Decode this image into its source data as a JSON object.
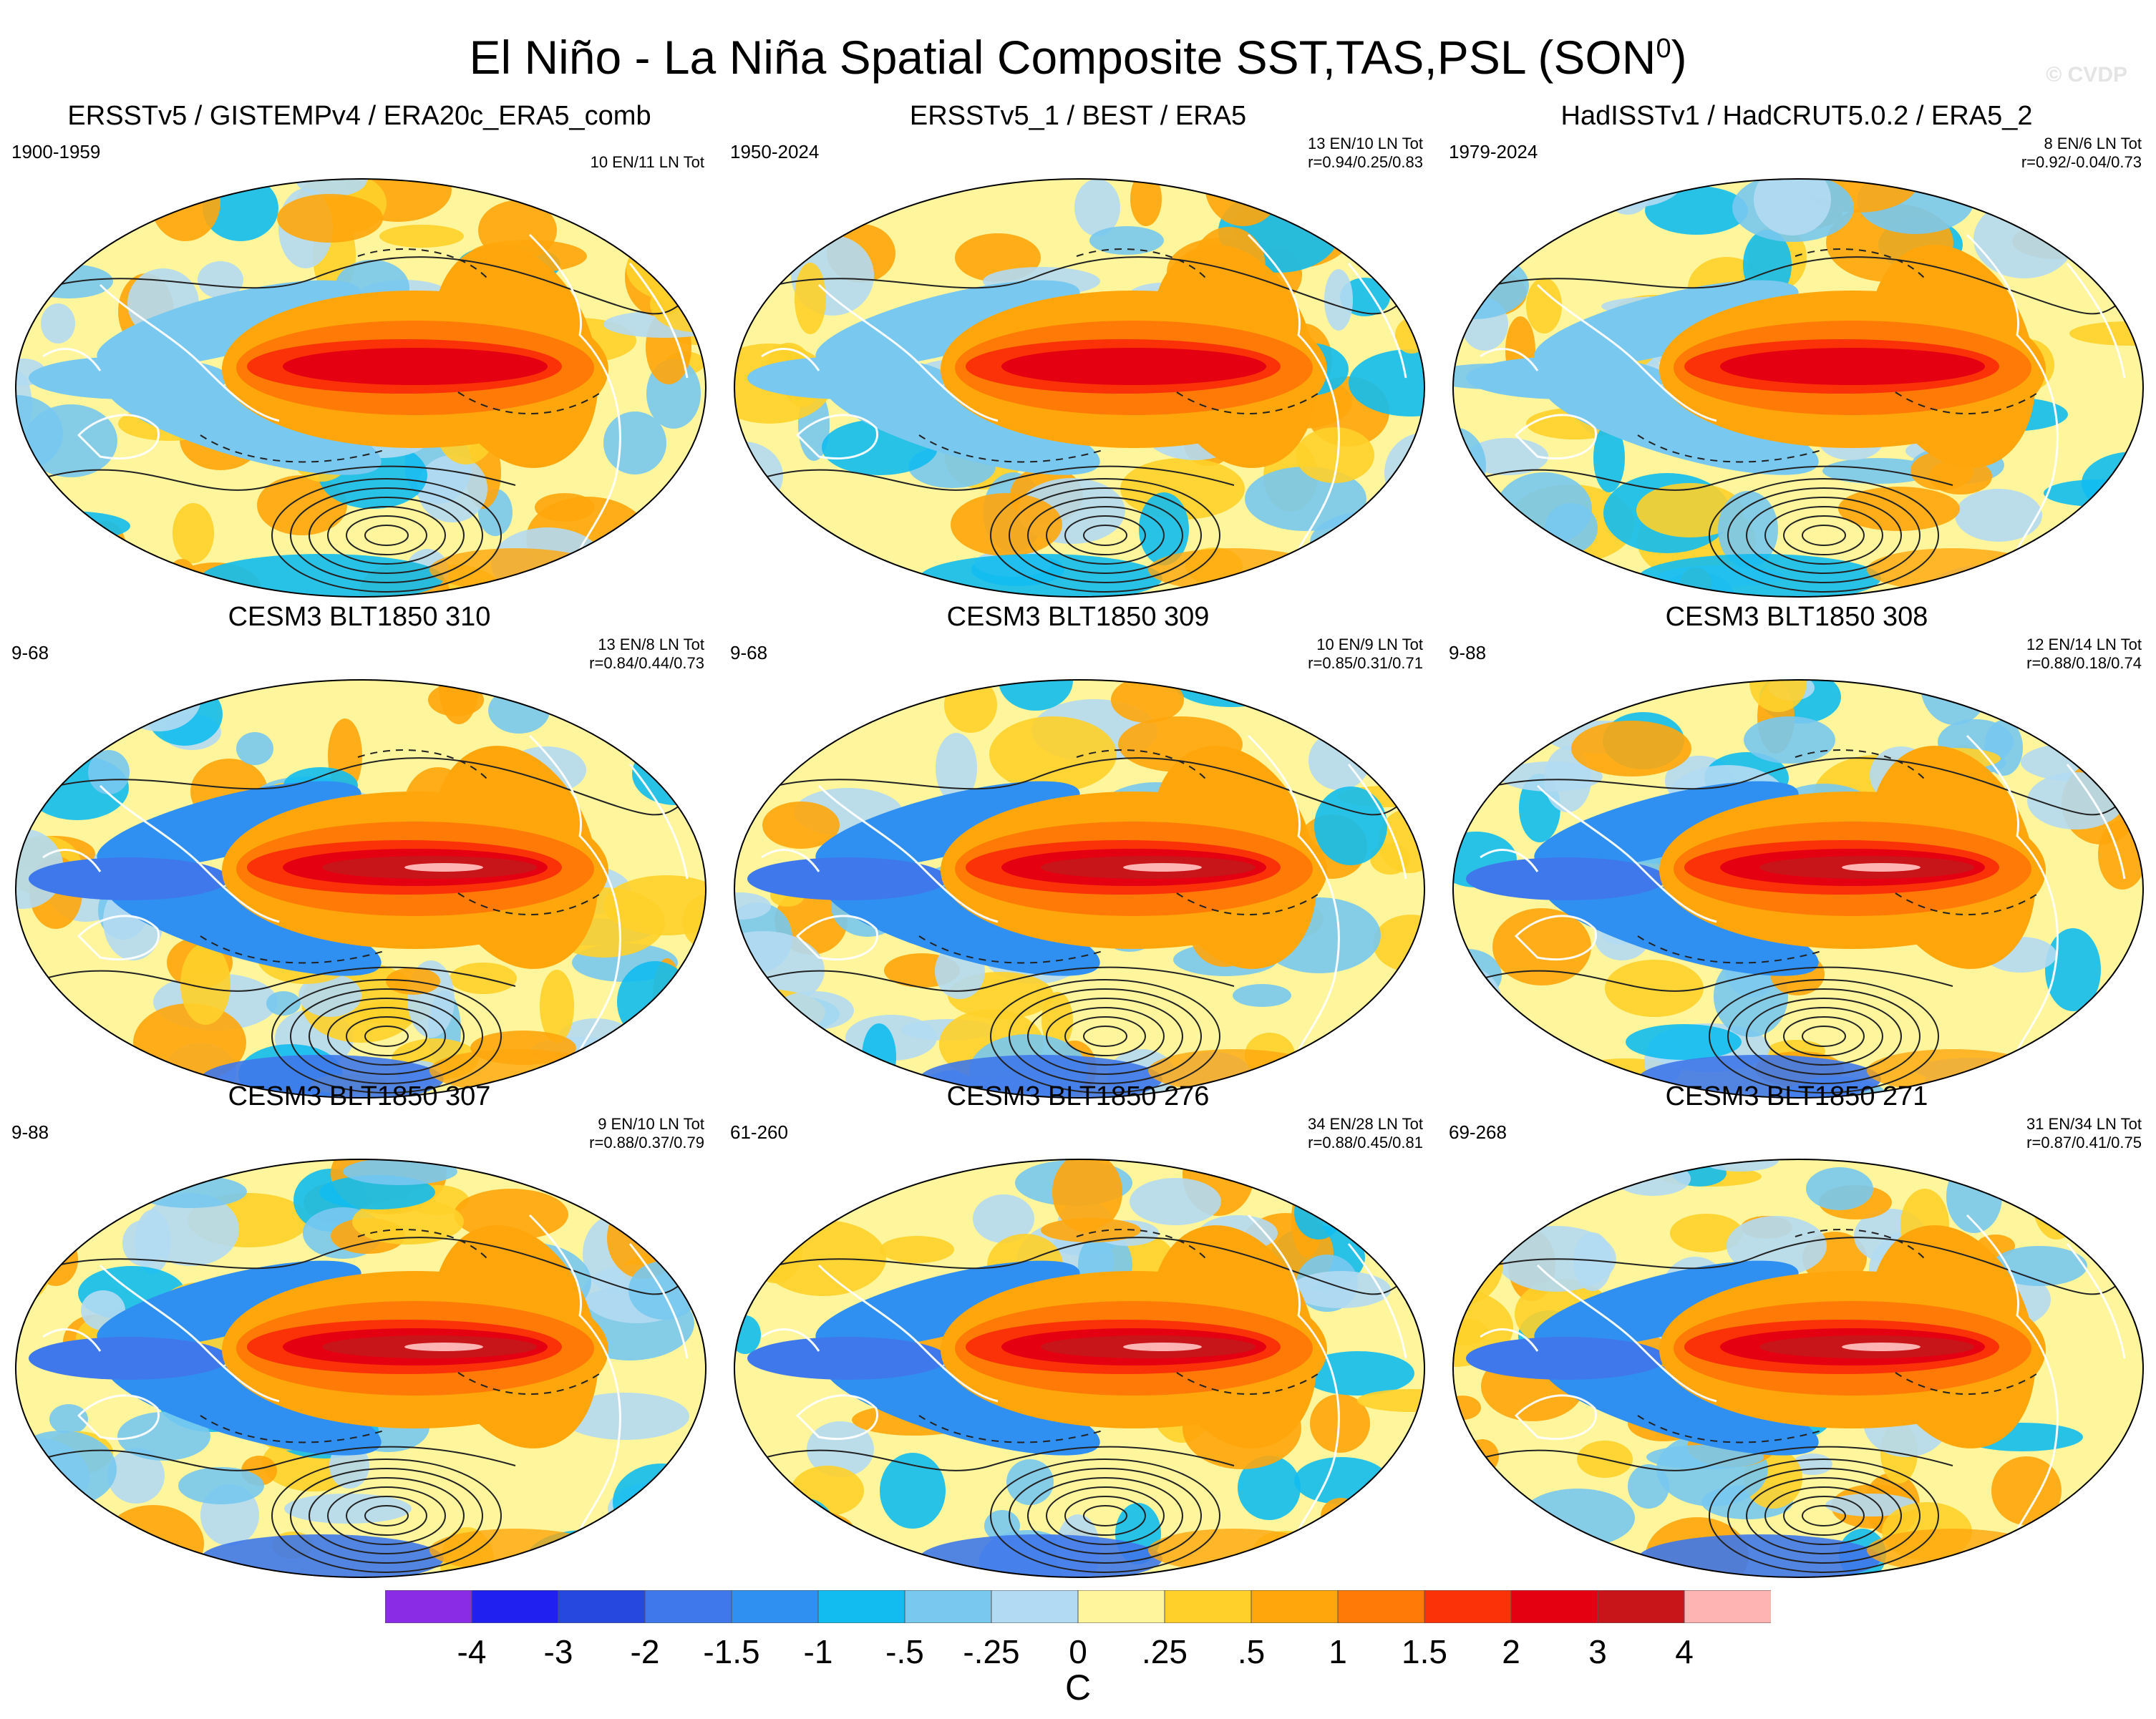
{
  "title": {
    "main": "El Niño - La Niña Spatial Composite SST,TAS,PSL (SON",
    "superscript": "0",
    "close": ")"
  },
  "watermark": "© CVDP",
  "chart_data": {
    "type": "heatmap",
    "title": "El Niño - La Niña Spatial Composite SST,TAS,PSL (SON0)",
    "units": "C",
    "colorbar_levels": [
      "-4",
      "-3",
      "-2",
      "-1.5",
      "-1",
      "-.5",
      "-.25",
      "0",
      ".25",
      ".5",
      "1",
      "1.5",
      "2",
      "3",
      "4"
    ],
    "colorbar_colors": [
      "#8a2be6",
      "#2020f0",
      "#2748de",
      "#3f78ea",
      "#2f90f2",
      "#12bcf0",
      "#78c8ef",
      "#b2daf2",
      "#fff59c",
      "#ffd02a",
      "#ffa60c",
      "#ff7a06",
      "#fb3208",
      "#e40010",
      "#c8151a",
      "#ffb4b4"
    ],
    "panels": [
      {
        "title": "ERSSTv5 / GISTEMPv4 / ERA20c_ERA5_comb",
        "years": "1900-1959",
        "counts": "10 EN/11 LN Tot",
        "corr": ""
      },
      {
        "title": "ERSSTv5_1 / BEST / ERA5",
        "years": "1950-2024",
        "counts": "13 EN/10 LN Tot",
        "corr": "r=0.94/0.25/0.83"
      },
      {
        "title": "HadISSTv1 / HadCRUT5.0.2 / ERA5_2",
        "years": "1979-2024",
        "counts": "8 EN/6 LN Tot",
        "corr": "r=0.92/-0.04/0.73"
      },
      {
        "title": "CESM3 BLT1850 310",
        "years": "9-68",
        "counts": "13 EN/8 LN Tot",
        "corr": "r=0.84/0.44/0.73"
      },
      {
        "title": "CESM3 BLT1850 309",
        "years": "9-68",
        "counts": "10 EN/9 LN Tot",
        "corr": "r=0.85/0.31/0.71"
      },
      {
        "title": "CESM3 BLT1850 308",
        "years": "9-88",
        "counts": "12 EN/14 LN Tot",
        "corr": "r=0.88/0.18/0.74"
      },
      {
        "title": "CESM3 BLT1850 307",
        "years": "9-88",
        "counts": "9 EN/10 LN Tot",
        "corr": "r=0.88/0.37/0.79"
      },
      {
        "title": "CESM3 BLT1850 276",
        "years": "61-260",
        "counts": "34 EN/28 LN Tot",
        "corr": "r=0.88/0.45/0.81"
      },
      {
        "title": "CESM3 BLT1850 271",
        "years": "69-268",
        "counts": "31 EN/34 LN Tot",
        "corr": "r=0.87/0.41/0.75"
      }
    ]
  }
}
